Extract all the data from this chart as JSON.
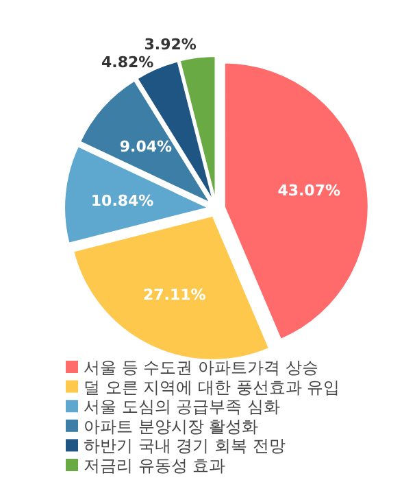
{
  "chart_data": {
    "type": "pie",
    "categories": [
      "서울 등 수도권 아파트가격 상승",
      "덜 오른 지역에 대한 풍선효과 유입",
      "서울 도심의 공급부족 심화",
      "아파트 분양시장 활성화",
      "하반기 국내 경기 회복 전망",
      "저금리 유동성 효과"
    ],
    "values": [
      43.07,
      27.11,
      10.84,
      9.04,
      4.82,
      3.92
    ],
    "value_labels": [
      "43.07%",
      "27.11%",
      "10.84%",
      "9.04%",
      "4.82%",
      "3.92%"
    ],
    "colors": [
      "#ff6b6b",
      "#fec84d",
      "#5ea8cf",
      "#3d7ea6",
      "#1f5582",
      "#6aaa44"
    ],
    "legend": "bottom"
  }
}
